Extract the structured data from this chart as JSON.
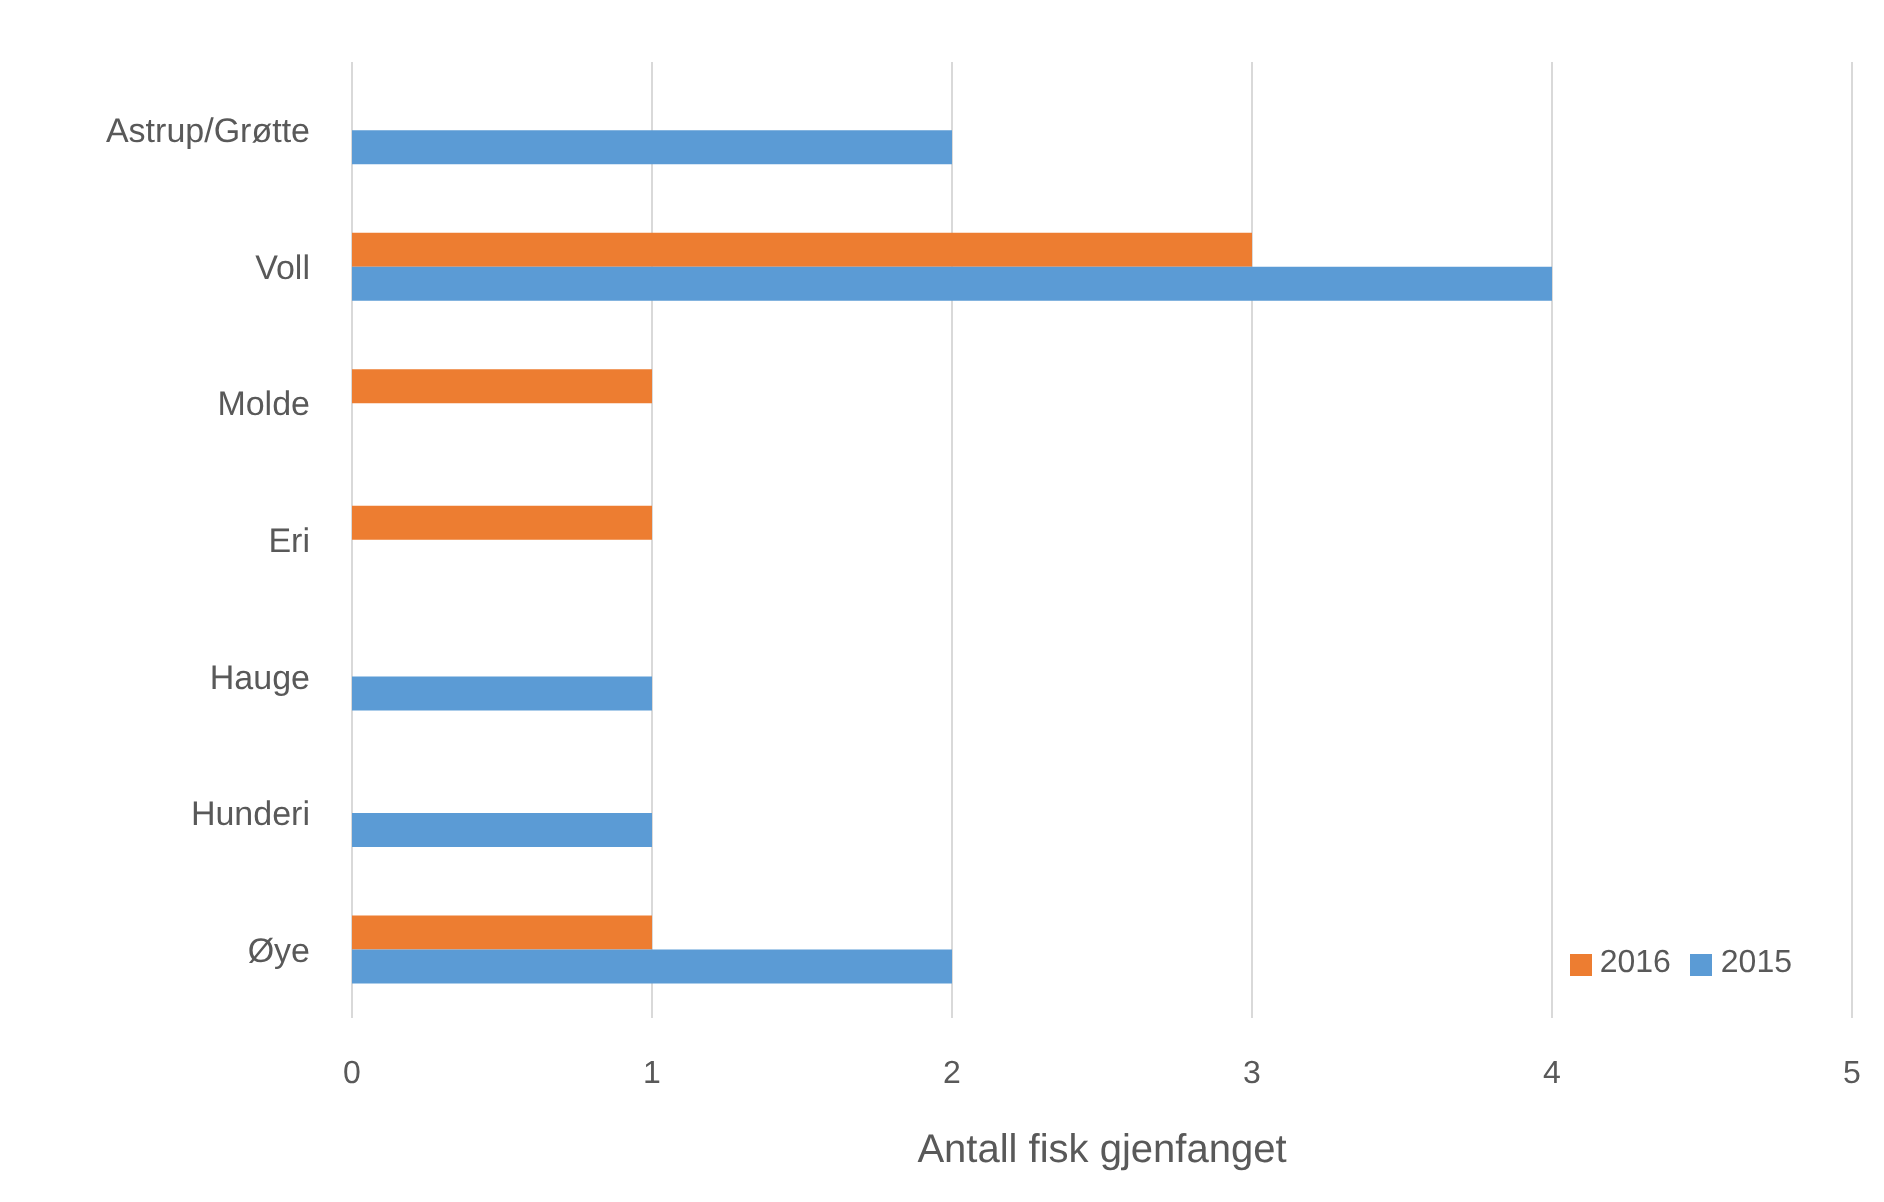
{
  "chart_data": {
    "type": "bar",
    "orientation": "horizontal",
    "categories": [
      "Astrup/Grøtte",
      "Voll",
      "Molde",
      "Eri",
      "Hauge",
      "Hunderi",
      "Øye"
    ],
    "series": [
      {
        "name": "2016",
        "color": "#ed7d31",
        "values": [
          null,
          3,
          1,
          1,
          null,
          null,
          1
        ]
      },
      {
        "name": "2015",
        "color": "#5b9bd5",
        "values": [
          2,
          4,
          null,
          null,
          1,
          1,
          2
        ]
      }
    ],
    "xlabel": "Antall fisk gjenfanget",
    "xlim": [
      0,
      5
    ],
    "xticks": [
      0,
      1,
      2,
      3,
      4,
      5
    ],
    "grid": "x",
    "legend": "bottom right"
  }
}
